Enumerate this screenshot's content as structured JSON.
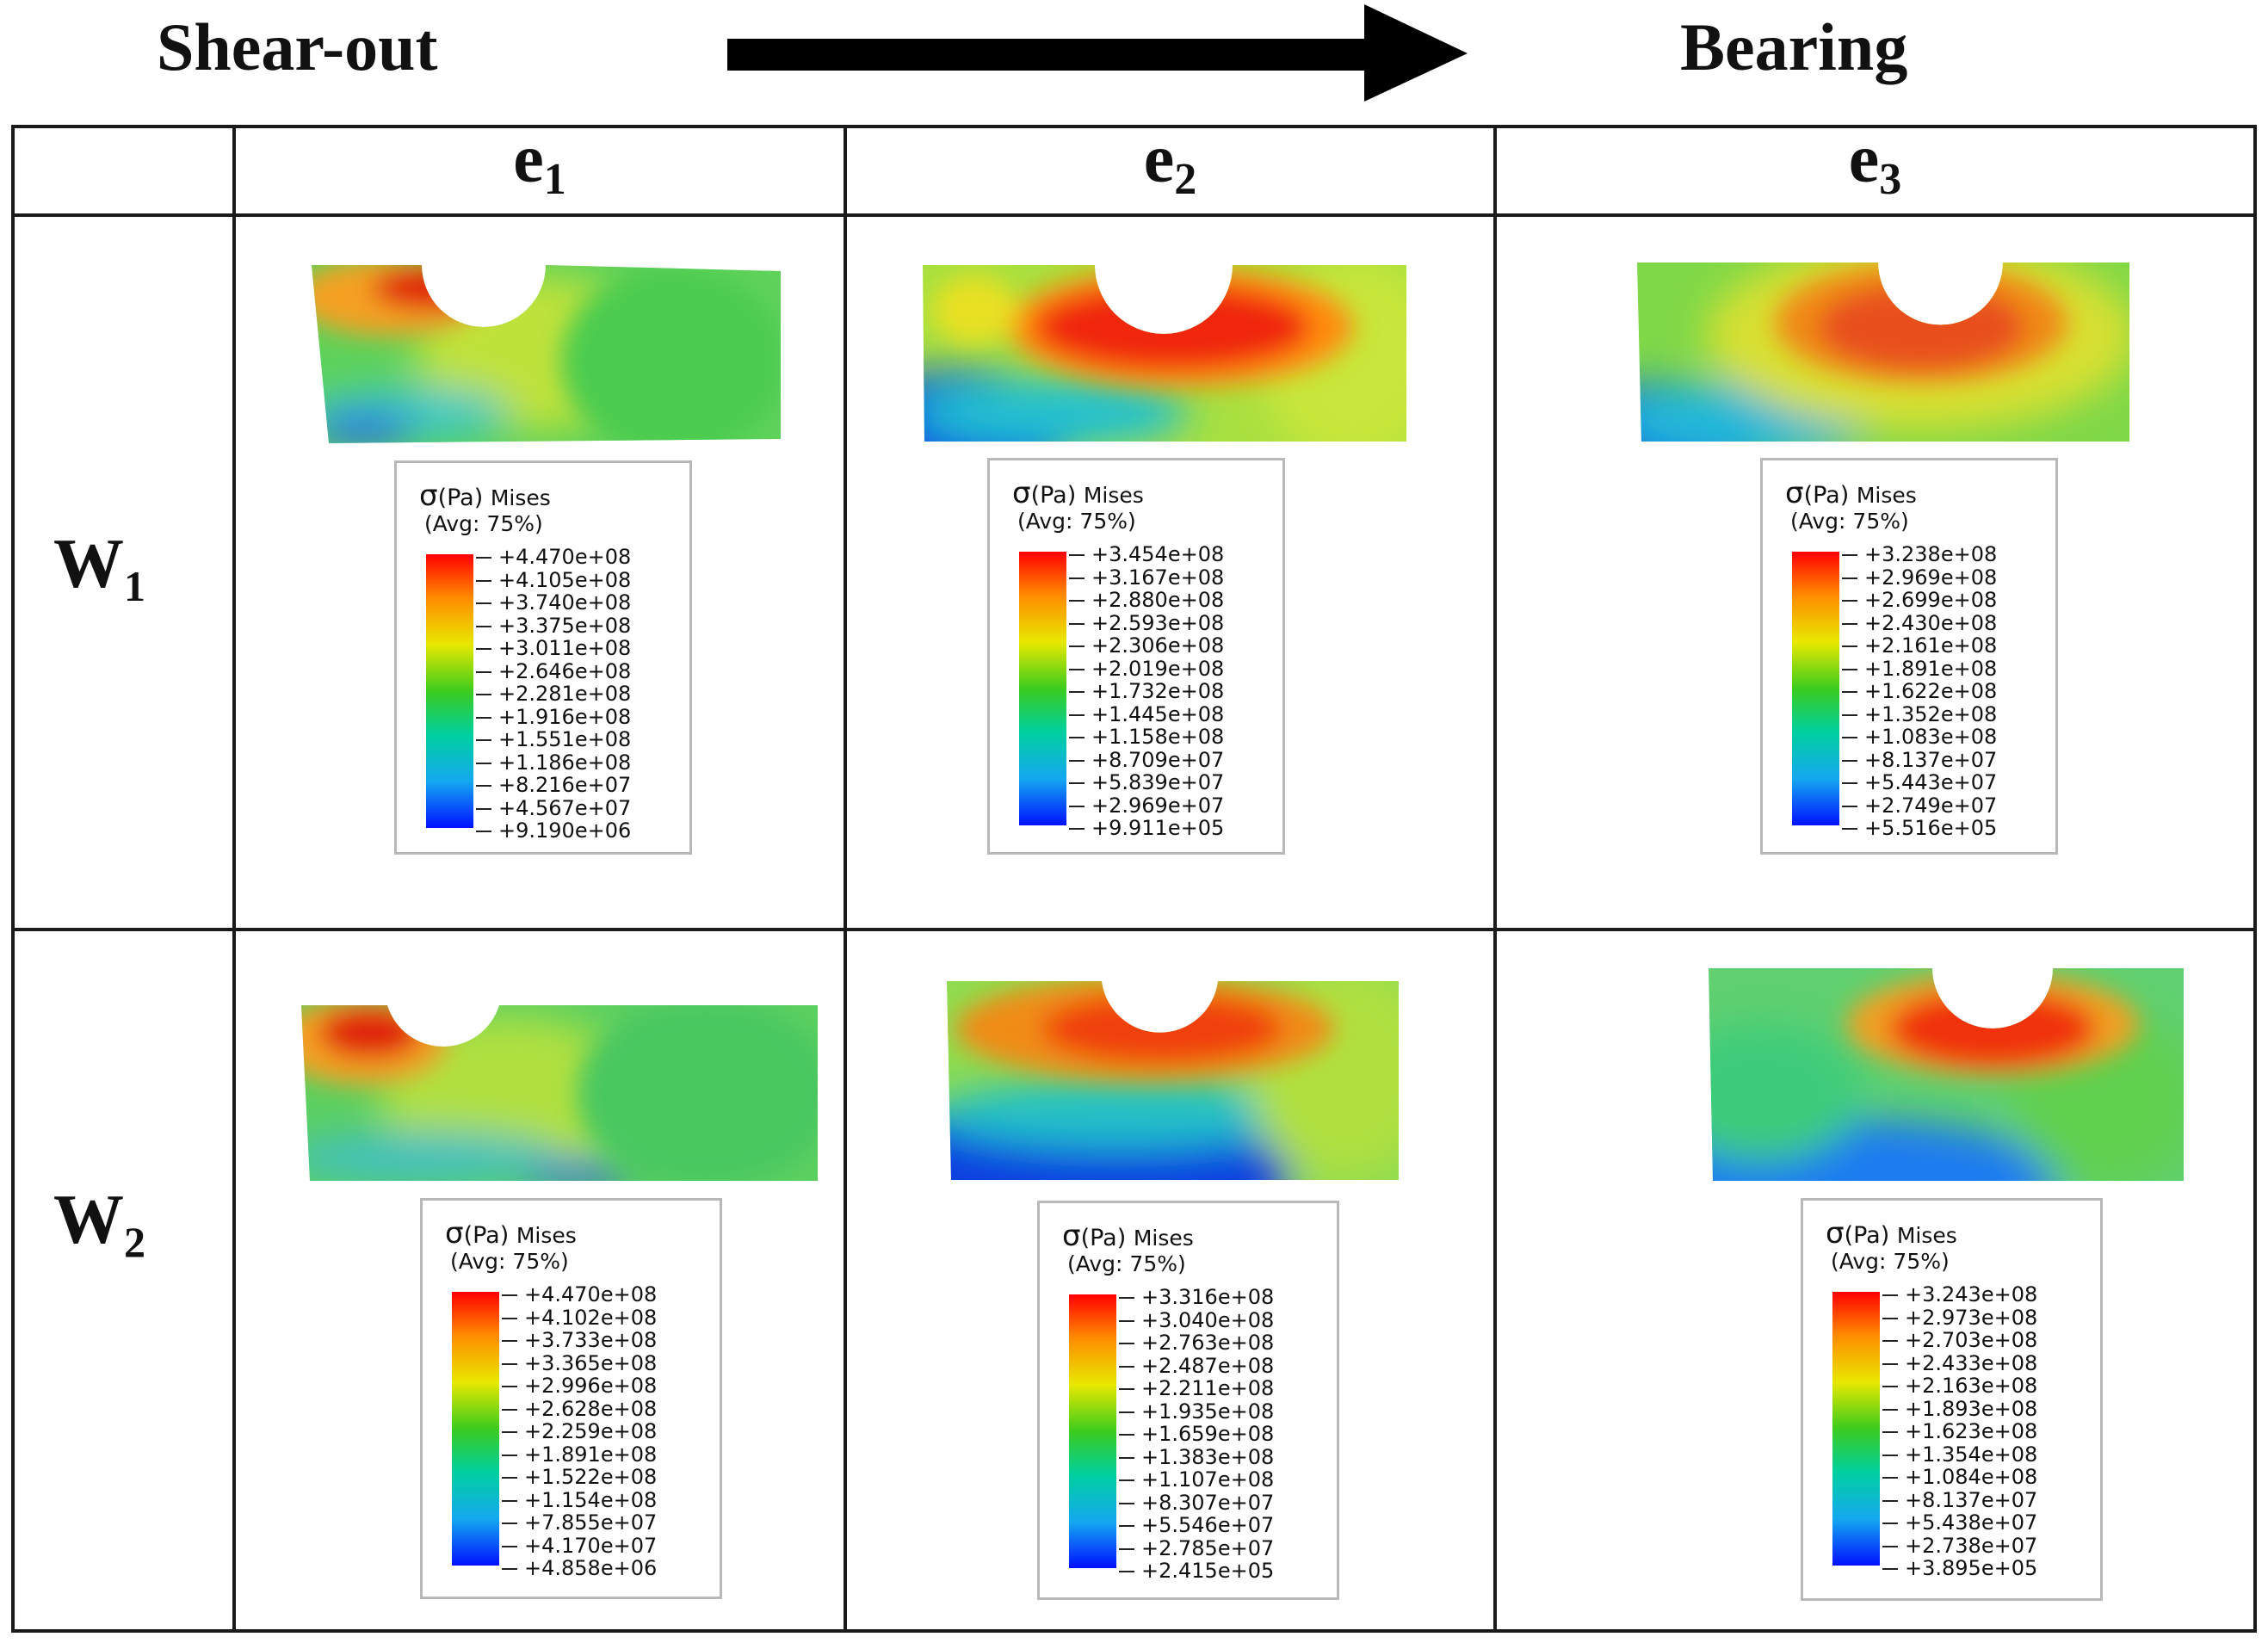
{
  "header": {
    "left_label": "Shear-out",
    "right_label": "Bearing"
  },
  "columns": [
    {
      "base": "e",
      "sub": "1"
    },
    {
      "base": "e",
      "sub": "2"
    },
    {
      "base": "e",
      "sub": "3"
    }
  ],
  "rows": [
    {
      "base": "W",
      "sub": "1"
    },
    {
      "base": "W",
      "sub": "2"
    }
  ],
  "legend_common": {
    "sigma": "σ",
    "unit": "(Pa)",
    "measure": "Mises",
    "avg": "(Avg: 75%)"
  },
  "legends": [
    {
      "id": "w1-e1",
      "values": [
        "+4.470e+08",
        "+4.105e+08",
        "+3.740e+08",
        "+3.375e+08",
        "+3.011e+08",
        "+2.646e+08",
        "+2.281e+08",
        "+1.916e+08",
        "+1.551e+08",
        "+1.186e+08",
        "+8.216e+07",
        "+4.567e+07",
        "+9.190e+06"
      ]
    },
    {
      "id": "w1-e2",
      "values": [
        "+3.454e+08",
        "+3.167e+08",
        "+2.880e+08",
        "+2.593e+08",
        "+2.306e+08",
        "+2.019e+08",
        "+1.732e+08",
        "+1.445e+08",
        "+1.158e+08",
        "+8.709e+07",
        "+5.839e+07",
        "+2.969e+07",
        "+9.911e+05"
      ]
    },
    {
      "id": "w1-e3",
      "values": [
        "+3.238e+08",
        "+2.969e+08",
        "+2.699e+08",
        "+2.430e+08",
        "+2.161e+08",
        "+1.891e+08",
        "+1.622e+08",
        "+1.352e+08",
        "+1.083e+08",
        "+8.137e+07",
        "+5.443e+07",
        "+2.749e+07",
        "+5.516e+05"
      ]
    },
    {
      "id": "w2-e1",
      "values": [
        "+4.470e+08",
        "+4.102e+08",
        "+3.733e+08",
        "+3.365e+08",
        "+2.996e+08",
        "+2.628e+08",
        "+2.259e+08",
        "+1.891e+08",
        "+1.522e+08",
        "+1.154e+08",
        "+7.855e+07",
        "+4.170e+07",
        "+4.858e+06"
      ]
    },
    {
      "id": "w2-e2",
      "values": [
        "+3.316e+08",
        "+3.040e+08",
        "+2.763e+08",
        "+2.487e+08",
        "+2.211e+08",
        "+1.935e+08",
        "+1.659e+08",
        "+1.383e+08",
        "+1.107e+08",
        "+8.307e+07",
        "+5.546e+07",
        "+2.785e+07",
        "+2.415e+05"
      ]
    },
    {
      "id": "w2-e3",
      "values": [
        "+3.243e+08",
        "+2.973e+08",
        "+2.703e+08",
        "+2.433e+08",
        "+2.163e+08",
        "+1.893e+08",
        "+1.623e+08",
        "+1.354e+08",
        "+1.084e+08",
        "+8.137e+07",
        "+5.438e+07",
        "+2.738e+07",
        "+3.895e+05"
      ]
    }
  ],
  "colors": {
    "grid_line": "#1a1a1a",
    "arrow": "#000000",
    "legend_border": "#b8b8b8"
  }
}
